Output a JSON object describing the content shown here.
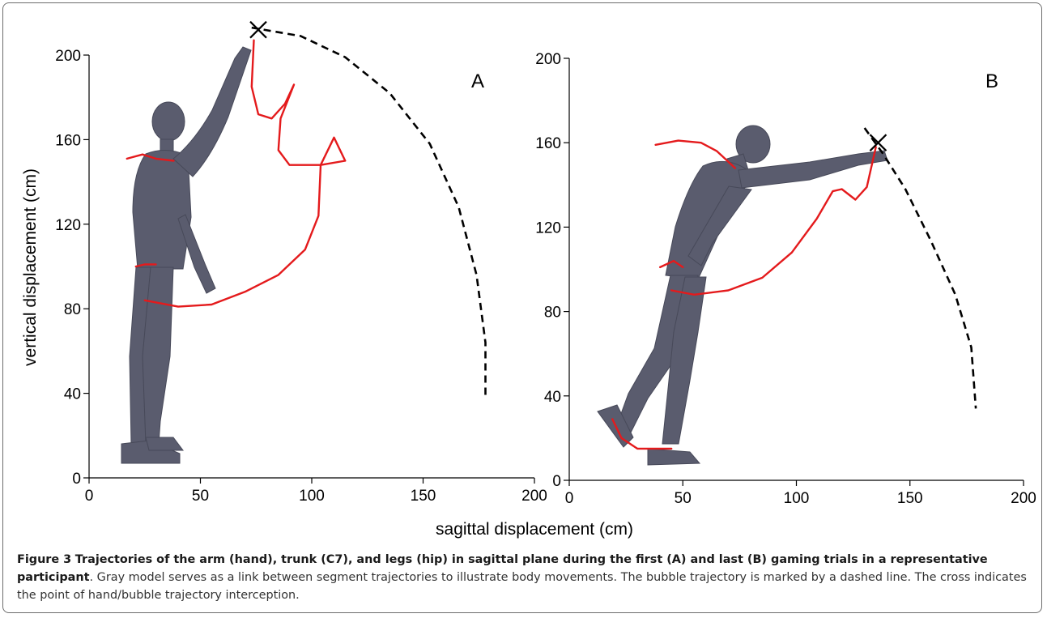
{
  "caption": {
    "label": "Figure 3",
    "bold_text": "Trajectories of the arm (hand), trunk (C7), and legs (hip) in sagittal plane during the first (A) and last (B) gaming trials in a representative participant",
    "text": ". Gray model serves as a link between segment trajectories to illustrate body movements. The bubble trajectory is marked by a dashed line. The cross indicates the point of hand/bubble trajectory interception."
  },
  "chart_data": [
    {
      "type": "line",
      "panel_label": "A",
      "xlabel": "sagittal displacement (cm)",
      "ylabel": "vertical displacement (cm)",
      "xlim": [
        0,
        200
      ],
      "ylim": [
        0,
        200
      ],
      "xticks": [
        0,
        50,
        100,
        150,
        200
      ],
      "yticks": [
        0,
        40,
        80,
        120,
        160,
        200
      ],
      "grid": false,
      "colors": {
        "trajectory": "#e41a1c",
        "bubble": "#000000",
        "model": "#5a5c6e"
      },
      "series": [
        {
          "style": "solid",
          "points": [
            [
              25,
              84
            ],
            [
              40,
              81
            ],
            [
              55,
              82
            ],
            [
              70,
              88
            ],
            [
              85,
              96
            ],
            [
              97,
              108
            ],
            [
              103,
              124
            ],
            [
              104,
              148
            ],
            [
              110,
              161
            ],
            [
              115,
              150
            ],
            [
              104,
              148
            ],
            [
              90,
              148
            ],
            [
              85,
              155
            ],
            [
              86,
              170
            ],
            [
              92,
              186
            ],
            [
              88,
              177
            ],
            [
              82,
              170
            ],
            [
              76,
              172
            ],
            [
              73,
              185
            ],
            [
              74,
              207
            ]
          ]
        },
        {
          "style": "solid",
          "points": [
            [
              17,
              151
            ],
            [
              24,
              153
            ],
            [
              30,
              151
            ],
            [
              38,
              150
            ]
          ]
        },
        {
          "style": "solid",
          "points": [
            [
              21,
              100
            ],
            [
              25,
              101
            ],
            [
              30,
              101
            ]
          ]
        },
        {
          "style": "dashed",
          "points": [
            [
              73,
              213
            ],
            [
              95,
              209
            ],
            [
              115,
              199
            ],
            [
              135,
              182
            ],
            [
              153,
              158
            ],
            [
              166,
              128
            ],
            [
              174,
              96
            ],
            [
              178,
              64
            ],
            [
              178,
              38
            ]
          ]
        }
      ],
      "annotations": [
        {
          "symbol": "cross",
          "x": 76,
          "y": 212
        }
      ]
    },
    {
      "type": "line",
      "panel_label": "B",
      "xlabel": "sagittal displacement (cm)",
      "ylabel": "",
      "xlim": [
        0,
        200
      ],
      "ylim": [
        0,
        200
      ],
      "xticks": [
        0,
        50,
        100,
        150,
        200
      ],
      "yticks": [
        0,
        40,
        80,
        120,
        160,
        200
      ],
      "grid": false,
      "colors": {
        "trajectory": "#e41a1c",
        "bubble": "#000000",
        "model": "#5a5c6e"
      },
      "series": [
        {
          "style": "solid",
          "points": [
            [
              45,
              90
            ],
            [
              55,
              88
            ],
            [
              70,
              90
            ],
            [
              85,
              96
            ],
            [
              98,
              108
            ],
            [
              109,
              124
            ],
            [
              116,
              137
            ],
            [
              120,
              138
            ],
            [
              126,
              133
            ],
            [
              131,
              139
            ],
            [
              135,
              158
            ]
          ]
        },
        {
          "style": "solid",
          "points": [
            [
              38,
              159
            ],
            [
              48,
              161
            ],
            [
              58,
              160
            ],
            [
              65,
              156
            ],
            [
              73,
              148
            ]
          ]
        },
        {
          "style": "solid",
          "points": [
            [
              40,
              101
            ],
            [
              46,
              104
            ],
            [
              50,
              101
            ]
          ]
        },
        {
          "style": "solid",
          "points": [
            [
              19,
              29
            ],
            [
              23,
              20
            ],
            [
              30,
              15
            ],
            [
              45,
              15
            ]
          ]
        },
        {
          "style": "dashed",
          "points": [
            [
              130,
              167
            ],
            [
              138,
              155
            ],
            [
              148,
              138
            ],
            [
              159,
              114
            ],
            [
              170,
              88
            ],
            [
              177,
              63
            ],
            [
              179,
              34
            ]
          ]
        }
      ],
      "annotations": [
        {
          "symbol": "cross",
          "x": 136,
          "y": 160
        }
      ]
    }
  ]
}
